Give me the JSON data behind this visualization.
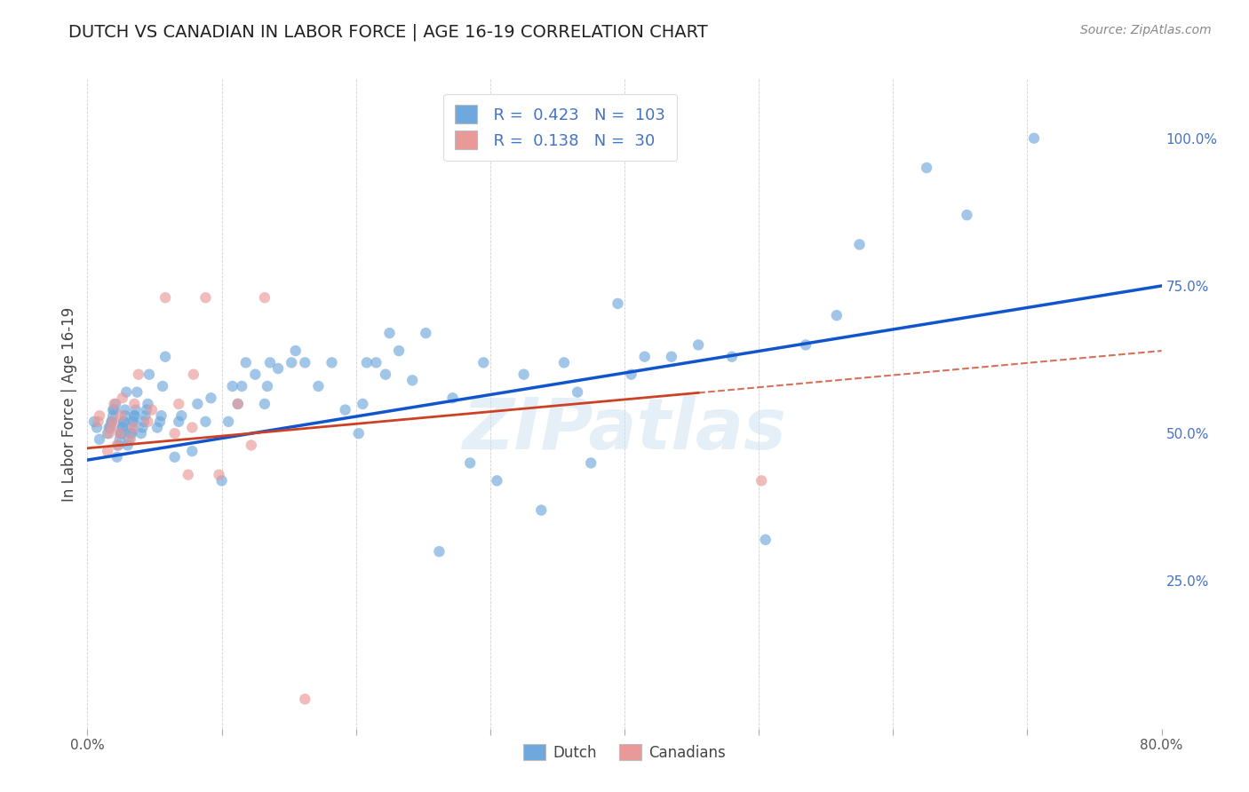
{
  "title": "DUTCH VS CANADIAN IN LABOR FORCE | AGE 16-19 CORRELATION CHART",
  "source": "Source: ZipAtlas.com",
  "ylabel": "In Labor Force | Age 16-19",
  "x_min": 0.0,
  "x_max": 0.8,
  "y_min": 0.0,
  "y_max": 1.1,
  "x_ticks": [
    0.0,
    0.1,
    0.2,
    0.3,
    0.4,
    0.5,
    0.6,
    0.7,
    0.8
  ],
  "x_tick_labels_show": [
    "0.0%",
    "80.0%"
  ],
  "y_tick_labels_right": [
    "25.0%",
    "50.0%",
    "75.0%",
    "100.0%"
  ],
  "y_tick_vals_right": [
    0.25,
    0.5,
    0.75,
    1.0
  ],
  "dutch_R": 0.423,
  "dutch_N": 103,
  "canadian_R": 0.138,
  "canadian_N": 30,
  "dutch_color": "#6fa8dc",
  "canadian_color": "#ea9999",
  "trendline_dutch_color": "#1155cc",
  "trendline_canadian_color": "#cc4125",
  "watermark": "ZIPatlas",
  "dutch_scatter_x": [
    0.005,
    0.007,
    0.009,
    0.015,
    0.016,
    0.017,
    0.018,
    0.018,
    0.019,
    0.019,
    0.02,
    0.021,
    0.022,
    0.023,
    0.024,
    0.025,
    0.025,
    0.026,
    0.026,
    0.027,
    0.027,
    0.028,
    0.028,
    0.029,
    0.03,
    0.031,
    0.032,
    0.033,
    0.033,
    0.034,
    0.034,
    0.035,
    0.035,
    0.036,
    0.037,
    0.04,
    0.041,
    0.042,
    0.043,
    0.044,
    0.045,
    0.046,
    0.052,
    0.054,
    0.055,
    0.056,
    0.058,
    0.065,
    0.068,
    0.07,
    0.078,
    0.082,
    0.088,
    0.092,
    0.1,
    0.105,
    0.108,
    0.112,
    0.115,
    0.118,
    0.125,
    0.132,
    0.134,
    0.136,
    0.142,
    0.152,
    0.155,
    0.162,
    0.172,
    0.182,
    0.192,
    0.202,
    0.205,
    0.208,
    0.215,
    0.222,
    0.225,
    0.232,
    0.242,
    0.252,
    0.262,
    0.272,
    0.285,
    0.295,
    0.305,
    0.325,
    0.338,
    0.355,
    0.365,
    0.375,
    0.395,
    0.405,
    0.415,
    0.435,
    0.455,
    0.48,
    0.505,
    0.535,
    0.558,
    0.575,
    0.625,
    0.655,
    0.705
  ],
  "dutch_scatter_y": [
    0.52,
    0.51,
    0.49,
    0.5,
    0.51,
    0.51,
    0.52,
    0.52,
    0.53,
    0.54,
    0.54,
    0.55,
    0.46,
    0.48,
    0.49,
    0.5,
    0.5,
    0.51,
    0.51,
    0.52,
    0.52,
    0.53,
    0.54,
    0.57,
    0.48,
    0.49,
    0.5,
    0.5,
    0.51,
    0.52,
    0.52,
    0.53,
    0.53,
    0.54,
    0.57,
    0.5,
    0.51,
    0.52,
    0.53,
    0.54,
    0.55,
    0.6,
    0.51,
    0.52,
    0.53,
    0.58,
    0.63,
    0.46,
    0.52,
    0.53,
    0.47,
    0.55,
    0.52,
    0.56,
    0.42,
    0.52,
    0.58,
    0.55,
    0.58,
    0.62,
    0.6,
    0.55,
    0.58,
    0.62,
    0.61,
    0.62,
    0.64,
    0.62,
    0.58,
    0.62,
    0.54,
    0.5,
    0.55,
    0.62,
    0.62,
    0.6,
    0.67,
    0.64,
    0.59,
    0.67,
    0.3,
    0.56,
    0.45,
    0.62,
    0.42,
    0.6,
    0.37,
    0.62,
    0.57,
    0.45,
    0.72,
    0.6,
    0.63,
    0.63,
    0.65,
    0.63,
    0.32,
    0.65,
    0.7,
    0.82,
    0.95,
    0.87,
    1.0
  ],
  "canadian_scatter_x": [
    0.008,
    0.009,
    0.015,
    0.016,
    0.018,
    0.019,
    0.02,
    0.022,
    0.024,
    0.025,
    0.026,
    0.032,
    0.034,
    0.035,
    0.038,
    0.045,
    0.048,
    0.058,
    0.065,
    0.068,
    0.075,
    0.078,
    0.079,
    0.088,
    0.098,
    0.112,
    0.122,
    0.132,
    0.162,
    0.502
  ],
  "canadian_scatter_y": [
    0.52,
    0.53,
    0.47,
    0.5,
    0.51,
    0.52,
    0.55,
    0.48,
    0.5,
    0.53,
    0.56,
    0.49,
    0.51,
    0.55,
    0.6,
    0.52,
    0.54,
    0.73,
    0.5,
    0.55,
    0.43,
    0.51,
    0.6,
    0.73,
    0.43,
    0.55,
    0.48,
    0.73,
    0.05,
    0.42
  ],
  "dutch_trend_x": [
    0.0,
    0.8
  ],
  "dutch_trend_y": [
    0.455,
    0.75
  ],
  "canadian_trend_x": [
    0.0,
    0.8
  ],
  "canadian_trend_y": [
    0.475,
    0.64
  ],
  "title_fontsize": 14,
  "axis_label_fontsize": 12,
  "tick_fontsize": 11,
  "scatter_size": 80,
  "scatter_alpha": 0.65,
  "grid_color": "#cccccc",
  "background_color": "#ffffff",
  "right_tick_color": "#4472c4",
  "watermark_color": "#cce0f0",
  "watermark_alpha": 0.5
}
